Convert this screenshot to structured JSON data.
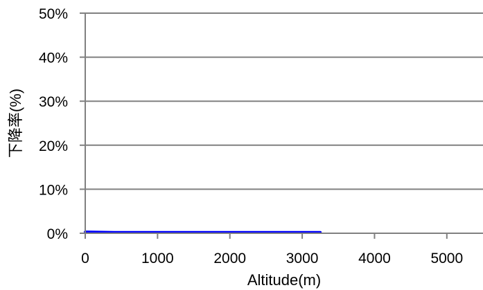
{
  "chart_data": {
    "type": "area",
    "xlabel": "Altitude(m)",
    "ylabel": "下降率(%)",
    "xlim": [
      0,
      5500
    ],
    "ylim": [
      0,
      50
    ],
    "x_ticks": [
      "0",
      "1000",
      "2000",
      "3000",
      "4000",
      "5000"
    ],
    "y_ticks": [
      "0%",
      "10%",
      "20%",
      "30%",
      "40%",
      "50%"
    ],
    "grid": "horizontal",
    "series": [
      {
        "type": "area",
        "color": "#9bbb59",
        "x": [
          0,
          80,
          400
        ],
        "y": [
          0,
          0.4,
          0
        ]
      },
      {
        "type": "line",
        "color": "#0000ff",
        "x": [
          0,
          400,
          3250
        ],
        "y": [
          0.3,
          0.2,
          0.2
        ]
      }
    ]
  }
}
